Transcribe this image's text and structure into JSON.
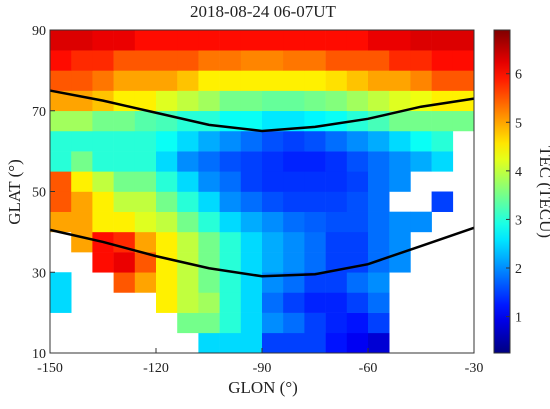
{
  "chart_data": {
    "type": "heatmap",
    "title": "2018-08-24 06-07UT",
    "xlabel": "GLON (°)",
    "ylabel": "GLAT (°)",
    "zlabel": "TEC (TECU)",
    "colormap": "jet",
    "xlim": [
      -150,
      -30
    ],
    "xticks": [
      -150,
      -120,
      -90,
      -60,
      -30
    ],
    "ylim": [
      10,
      90
    ],
    "yticks": [
      10,
      30,
      50,
      70,
      90
    ],
    "zlim": [
      0.25,
      6.9
    ],
    "zticks": [
      1,
      2,
      3,
      4,
      5,
      6
    ],
    "xbins": [
      -150,
      -144,
      -138,
      -132,
      -126,
      -120,
      -114,
      -108,
      -102,
      -96,
      -90,
      -84,
      -78,
      -72,
      -66,
      -60,
      -54,
      -48,
      -42,
      -36,
      -30
    ],
    "ybins": [
      10,
      15,
      20,
      25,
      30,
      35,
      40,
      45,
      50,
      55,
      60,
      65,
      70,
      75,
      80,
      85,
      90
    ],
    "z": [
      [
        null,
        null,
        null,
        null,
        null,
        null,
        null,
        2.5,
        2.5,
        2.5,
        1.5,
        1.5,
        1.5,
        1.2,
        1,
        0.8,
        null,
        null,
        null,
        null
      ],
      [
        null,
        null,
        null,
        null,
        null,
        null,
        3.5,
        3.5,
        3,
        2.5,
        2,
        1.8,
        1.5,
        1.3,
        1.2,
        1.5,
        null,
        null,
        null,
        null
      ],
      [
        2.5,
        null,
        null,
        null,
        null,
        4.5,
        4,
        3.8,
        3,
        2.5,
        1.8,
        1.5,
        1.3,
        1.3,
        1.5,
        1.8,
        null,
        null,
        null,
        null
      ],
      [
        2.5,
        null,
        null,
        5.5,
        5,
        4.5,
        4,
        3.5,
        3,
        2.5,
        2,
        1.8,
        1.5,
        1.5,
        1.8,
        2,
        null,
        null,
        null,
        null
      ],
      [
        null,
        null,
        6,
        6.2,
        5.5,
        4.5,
        4,
        3.5,
        3,
        2.5,
        2.2,
        2,
        1.8,
        1.5,
        1.5,
        1.8,
        2,
        null,
        null,
        null
      ],
      [
        null,
        5,
        6,
        5.8,
        5,
        4.5,
        4,
        3.5,
        3,
        2.5,
        2.2,
        2,
        1.8,
        1.5,
        1.5,
        1.8,
        2,
        null,
        null,
        null
      ],
      [
        5,
        5,
        4.5,
        4.5,
        4.2,
        4,
        3.5,
        3,
        2.5,
        2.2,
        2,
        1.8,
        1.7,
        1.6,
        1.6,
        1.8,
        2,
        2,
        null,
        null
      ],
      [
        5.5,
        5,
        4.5,
        4,
        4,
        3.5,
        3,
        2.5,
        2,
        1.8,
        1.6,
        1.5,
        1.5,
        1.5,
        1.6,
        1.8,
        null,
        null,
        1.5,
        null
      ],
      [
        5.5,
        4.5,
        4,
        3.5,
        3.5,
        3,
        2.5,
        2,
        1.8,
        1.5,
        1.4,
        1.4,
        1.4,
        1.4,
        1.5,
        1.8,
        2,
        null,
        null,
        null
      ],
      [
        3,
        3.5,
        3,
        3,
        3,
        2.5,
        2,
        1.8,
        1.6,
        1.5,
        1.4,
        1.3,
        1.3,
        1.4,
        1.6,
        1.8,
        2,
        2.2,
        2.5,
        null
      ],
      [
        3,
        3,
        3,
        3,
        3,
        2.8,
        2.5,
        2.2,
        2,
        1.8,
        1.6,
        1.5,
        1.6,
        1.8,
        2,
        2.2,
        2.5,
        2.8,
        3,
        null
      ],
      [
        3.8,
        3.8,
        3.5,
        3.5,
        3.3,
        3.2,
        3,
        3,
        2.8,
        2.8,
        2.6,
        2.6,
        2.7,
        2.8,
        3,
        3.2,
        3.5,
        3.5,
        3.5,
        3.5
      ],
      [
        5,
        5,
        4.8,
        4.5,
        4.5,
        4.2,
        4,
        3.8,
        3.5,
        3.5,
        3.4,
        3.4,
        3.5,
        3.6,
        3.8,
        4,
        4.2,
        4.3,
        4.5,
        4.5
      ],
      [
        5.5,
        5.5,
        5.3,
        5,
        5,
        5,
        4.8,
        4.5,
        4.5,
        4.5,
        4.5,
        4.5,
        4.5,
        4.6,
        4.8,
        5,
        5,
        5.2,
        5.5,
        5.5
      ],
      [
        6,
        5.8,
        5.8,
        5.5,
        5.5,
        5.5,
        5.5,
        5.3,
        5.3,
        5.2,
        5.2,
        5.3,
        5.3,
        5.5,
        5.5,
        5.5,
        5.8,
        5.8,
        6,
        6
      ],
      [
        6.3,
        6.3,
        6.2,
        6.2,
        6,
        6,
        6,
        6,
        6,
        6,
        6,
        6,
        6,
        6,
        6,
        6.2,
        6.2,
        6.3,
        6.3,
        6.3
      ]
    ],
    "lines": [
      {
        "color": "#000000",
        "x": [
          -150,
          -135,
          -120,
          -105,
          -90,
          -75,
          -60,
          -45,
          -30
        ],
        "y": [
          75,
          72.5,
          69.5,
          66.5,
          65,
          66,
          68,
          71,
          73
        ]
      },
      {
        "color": "#000000",
        "x": [
          -150,
          -135,
          -120,
          -105,
          -90,
          -75,
          -60,
          -45,
          -30
        ],
        "y": [
          40.5,
          37.5,
          34,
          31,
          29,
          29.5,
          32,
          36.5,
          41
        ]
      }
    ]
  }
}
